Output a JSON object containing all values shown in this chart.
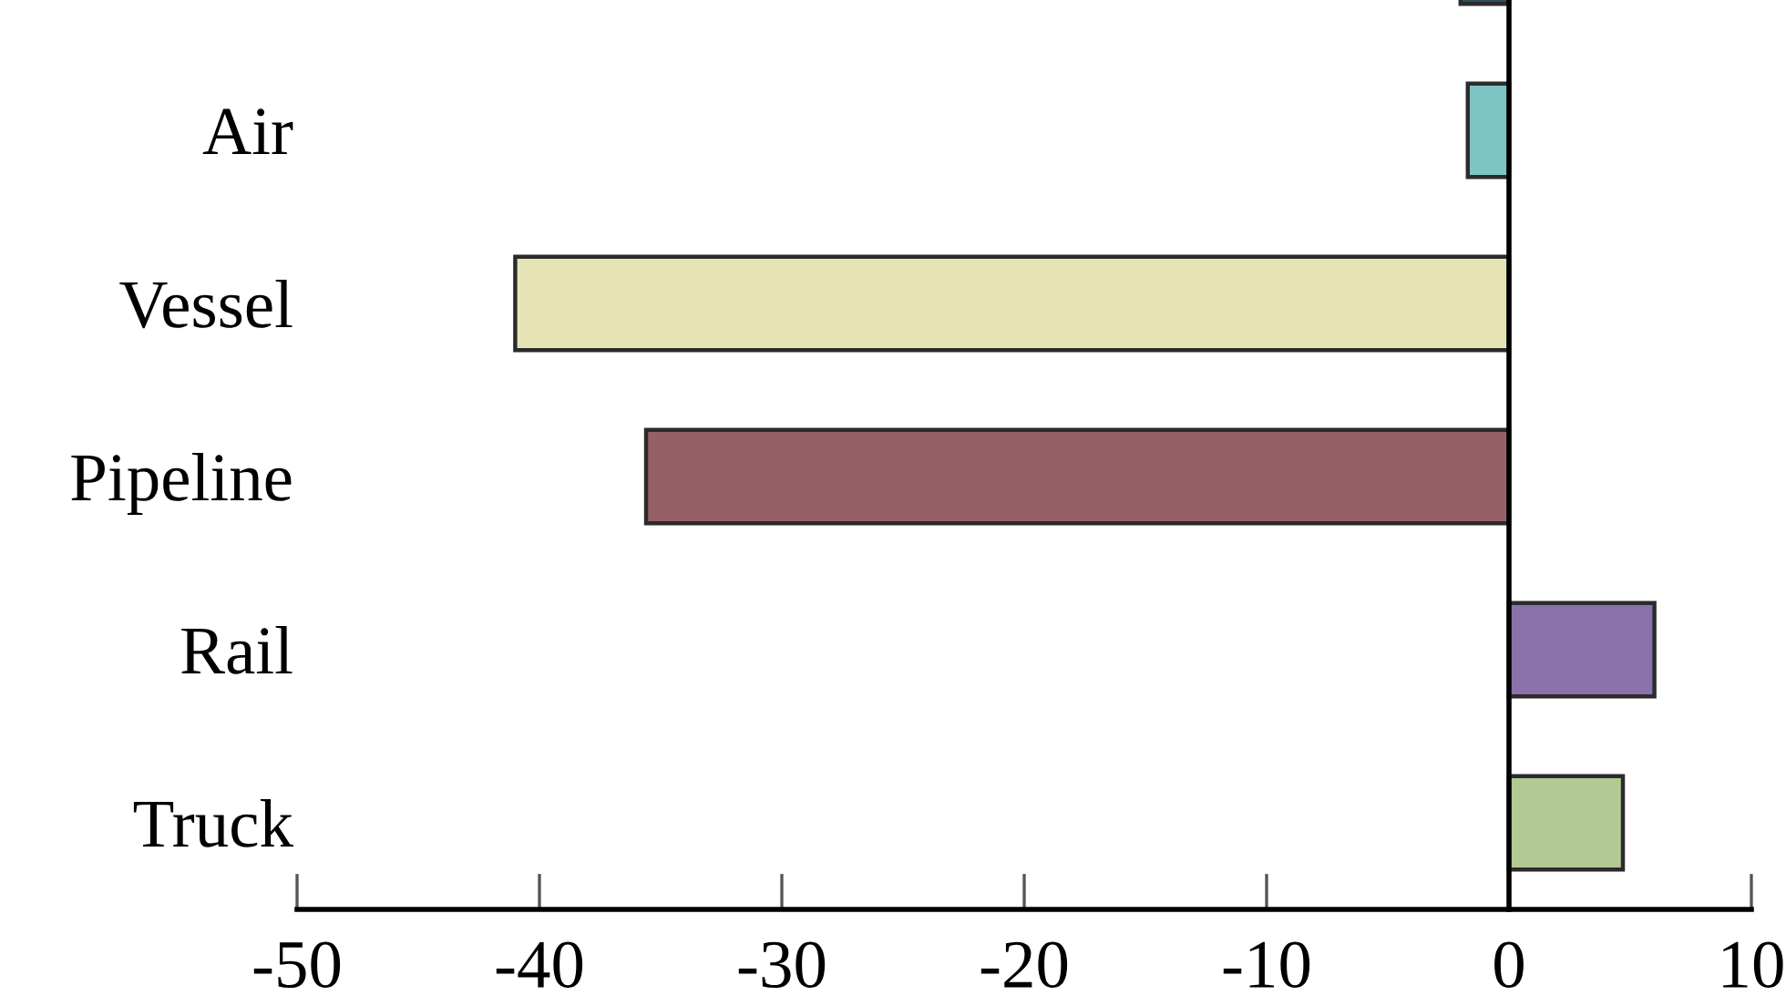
{
  "chart_data": {
    "type": "bar",
    "orientation": "horizontal",
    "categories": [
      null,
      "Air",
      "Vessel",
      "Pipeline",
      "Rail",
      "Truck"
    ],
    "values": [
      -2.0,
      -1.7,
      -41.0,
      -35.6,
      6.0,
      4.7
    ],
    "colors": [
      "#2f4f59",
      "#7fc4c4",
      "#e6e3b5",
      "#956166",
      "#8a72aa",
      "#b3c993"
    ],
    "xlim": [
      -50,
      10
    ],
    "xticks": [
      -50,
      -40,
      -30,
      -20,
      -10,
      0,
      10
    ]
  }
}
